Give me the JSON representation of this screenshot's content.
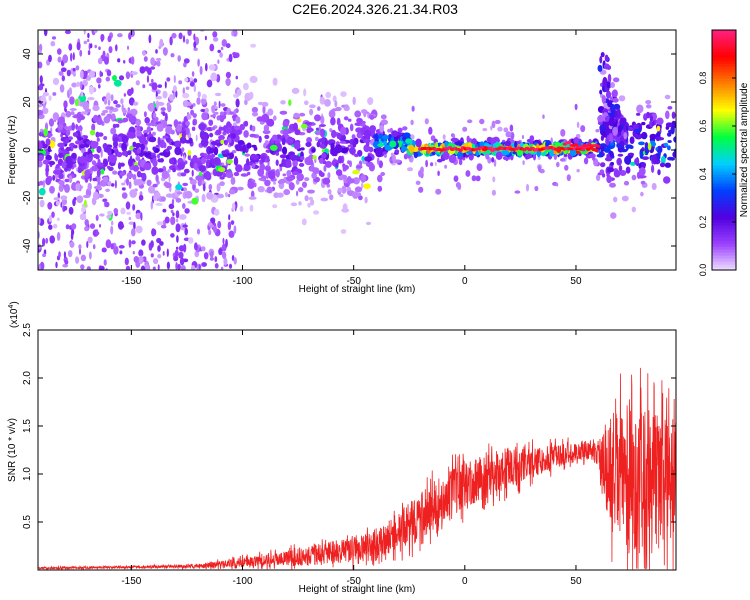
{
  "title": "C2E6.2024.326.21.34.R03",
  "chart_data": [
    {
      "type": "heatmap",
      "xlabel": "Height of straight line (km)",
      "ylabel": "Frequency (Hz)",
      "xlim": [
        -192,
        95
      ],
      "ylim": [
        -50,
        50
      ],
      "xticks": [
        -150,
        -100,
        -50,
        0,
        50
      ],
      "yticks": [
        -40,
        -20,
        0,
        20,
        40
      ],
      "colorbar": {
        "label": "Normalized spectral amplitude",
        "range": [
          0,
          1
        ],
        "ticks": [
          "0.0",
          "0.2",
          "0.4",
          "0.6",
          "0.8"
        ],
        "tick_values": [
          0,
          0.2,
          0.4,
          0.6,
          0.8
        ],
        "colors": [
          "#f0e0ff",
          "#9a40ff",
          "#5000e0",
          "#0040ff",
          "#00d0ff",
          "#00ff40",
          "#ffff00",
          "#ff8000",
          "#ff0000",
          "#ff2080"
        ]
      },
      "bands": [
        {
          "x_start": -192,
          "x_end": -40,
          "freq_center": 0,
          "freq_spread": 12,
          "amplitude": 0.2
        },
        {
          "x_start": -40,
          "x_end": -25,
          "freq_center": 3,
          "freq_spread": 3,
          "amplitude": 0.55
        },
        {
          "x_start": -25,
          "x_end": 60,
          "freq_center": 0.5,
          "freq_spread": 1.5,
          "amplitude": 0.95
        },
        {
          "x_start": 60,
          "x_end": 95,
          "freq_center": 2,
          "freq_spread": 10,
          "amplitude": 0.35
        }
      ],
      "ridge_features": [
        {
          "x_start": 62,
          "x_end": 72,
          "freq_start": 5,
          "freq_end": 45
        }
      ]
    },
    {
      "type": "line",
      "xlabel": "Height of straight line (km)",
      "ylabel": "SNR (10 * v/v)",
      "y_multiplier": "(x10^4)",
      "xlim": [
        -192,
        95
      ],
      "ylim": [
        0,
        2.5
      ],
      "xticks": [
        -150,
        -100,
        -50,
        0,
        50
      ],
      "yticks": [
        0.5,
        1.0,
        1.5,
        2.0,
        2.5
      ],
      "ytick_labels": [
        "0.5",
        "1.0",
        "1.5",
        "2.0",
        "2.5"
      ],
      "color": "#ee2020",
      "envelope": {
        "x": [
          -192,
          -150,
          -120,
          -100,
          -80,
          -60,
          -40,
          -30,
          -20,
          -10,
          0,
          20,
          40,
          55,
          60,
          65,
          75,
          85,
          95
        ],
        "mean": [
          0.02,
          0.03,
          0.04,
          0.08,
          0.12,
          0.18,
          0.25,
          0.4,
          0.55,
          0.75,
          0.9,
          1.05,
          1.18,
          1.25,
          1.2,
          1.0,
          1.0,
          0.95,
          0.9
        ],
        "spread": [
          0.01,
          0.01,
          0.02,
          0.05,
          0.08,
          0.12,
          0.15,
          0.2,
          0.25,
          0.25,
          0.25,
          0.2,
          0.12,
          0.1,
          0.1,
          0.6,
          0.8,
          0.7,
          0.6
        ]
      }
    }
  ]
}
